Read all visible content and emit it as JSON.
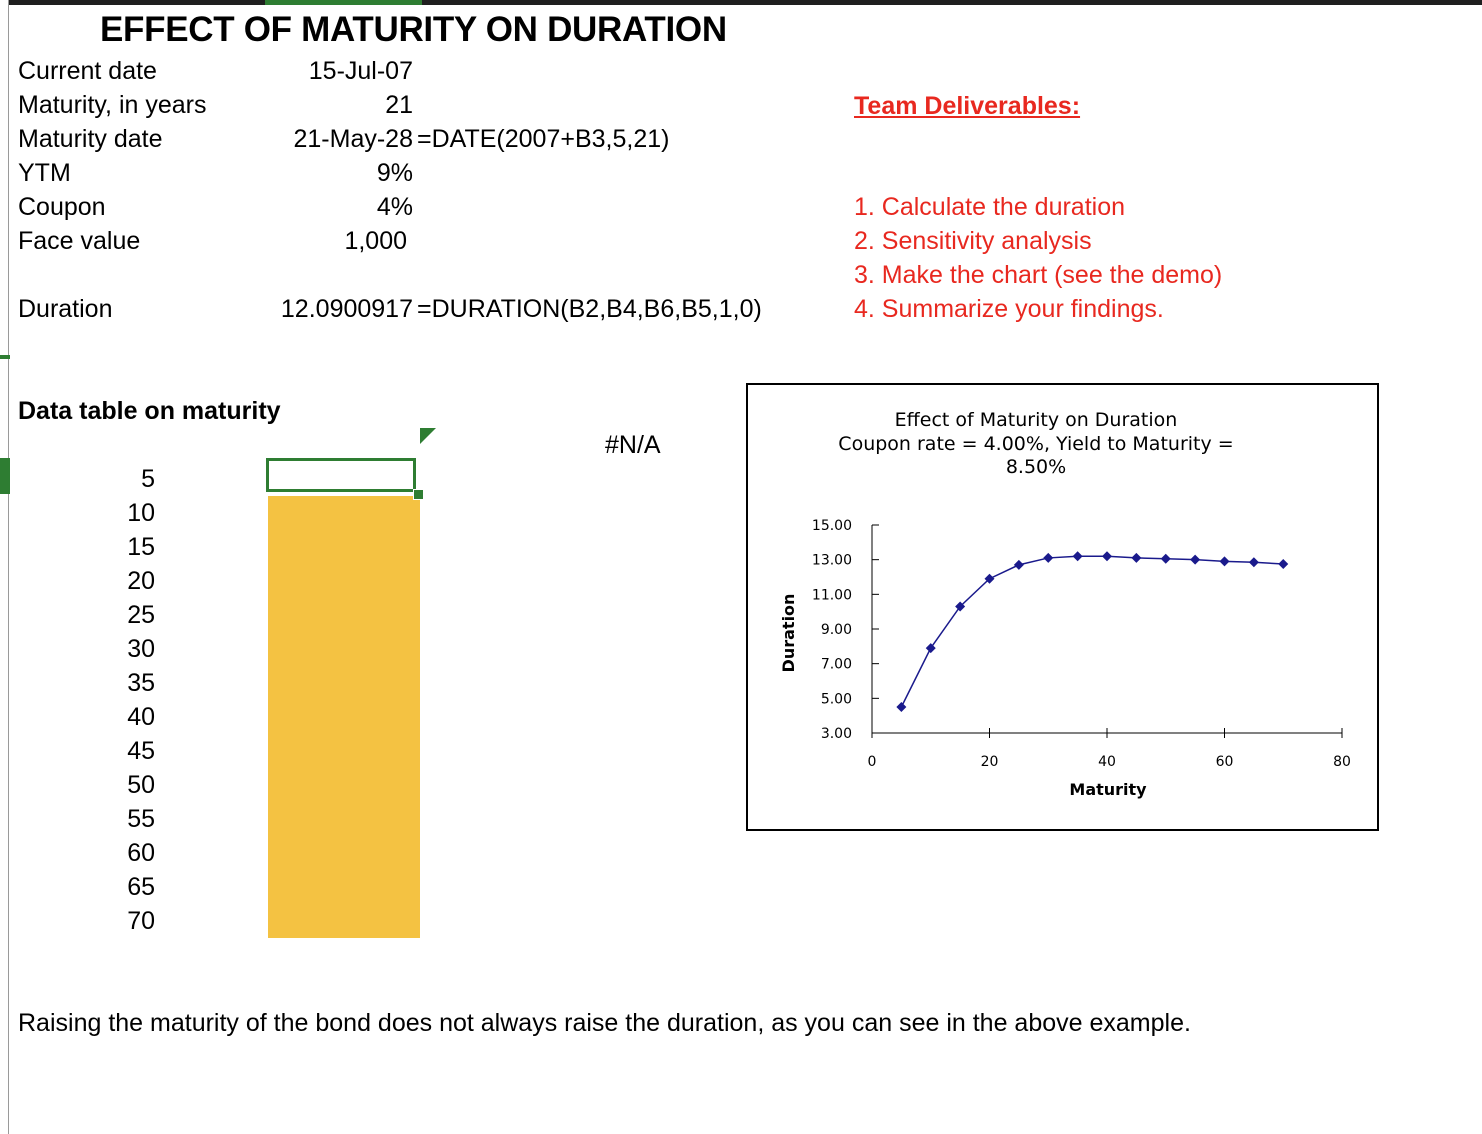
{
  "title": "EFFECT OF MATURITY ON DURATION",
  "inputs": [
    {
      "label": "Current date",
      "value": "15-Jul-07",
      "formula": ""
    },
    {
      "label": "Maturity, in years",
      "value": "21",
      "formula": ""
    },
    {
      "label": "Maturity date",
      "value": "21-May-28",
      "formula": "=DATE(2007+B3,5,21)"
    },
    {
      "label": "YTM",
      "value": "9%",
      "formula": ""
    },
    {
      "label": "Coupon",
      "value": "4%",
      "formula": ""
    },
    {
      "label": "Face value",
      "value": "1,000",
      "formula": ""
    }
  ],
  "duration": {
    "label": "Duration",
    "value": "12.0900917",
    "formula": "=DURATION(B2,B4,B6,B5,1,0)"
  },
  "deliverables": {
    "heading": "Team Deliverables:",
    "items": [
      "1. Calculate the duration",
      "2. Sensitivity analysis",
      "3. Make the chart (see the demo)",
      "4. Summarize your findings."
    ]
  },
  "data_table": {
    "heading": "Data table on maturity",
    "na_value": "#N/A",
    "maturities": [
      "5",
      "10",
      "15",
      "20",
      "25",
      "30",
      "35",
      "40",
      "45",
      "50",
      "55",
      "60",
      "65",
      "70"
    ]
  },
  "summary": "Raising the maturity of the bond does not always raise the duration, as you can see in the above example.",
  "colors": {
    "red": "#e8281f",
    "green": "#2e7d32",
    "yellow": "#f4c242",
    "series": "#1a1a8c"
  },
  "chart_data": {
    "type": "scatter",
    "title_lines": [
      "Effect of Maturity on Duration",
      "Coupon rate = 4.00%, Yield to Maturity =",
      "8.50%"
    ],
    "xlabel": "Maturity",
    "ylabel": "Duration",
    "xlim": [
      0,
      80
    ],
    "ylim": [
      3,
      15
    ],
    "x_ticks": [
      0,
      20,
      40,
      60,
      80
    ],
    "y_ticks": [
      "15.00",
      "13.00",
      "11.00",
      "9.00",
      "7.00",
      "5.00",
      "3.00"
    ],
    "y_tick_values": [
      15,
      13,
      11,
      9,
      7,
      5,
      3
    ],
    "series": [
      {
        "name": "Duration",
        "x": [
          5,
          10,
          15,
          20,
          25,
          30,
          35,
          40,
          45,
          50,
          55,
          60,
          65,
          70
        ],
        "y": [
          4.5,
          7.9,
          10.3,
          11.9,
          12.7,
          13.1,
          13.2,
          13.2,
          13.1,
          13.05,
          13.0,
          12.9,
          12.85,
          12.75
        ]
      }
    ]
  }
}
